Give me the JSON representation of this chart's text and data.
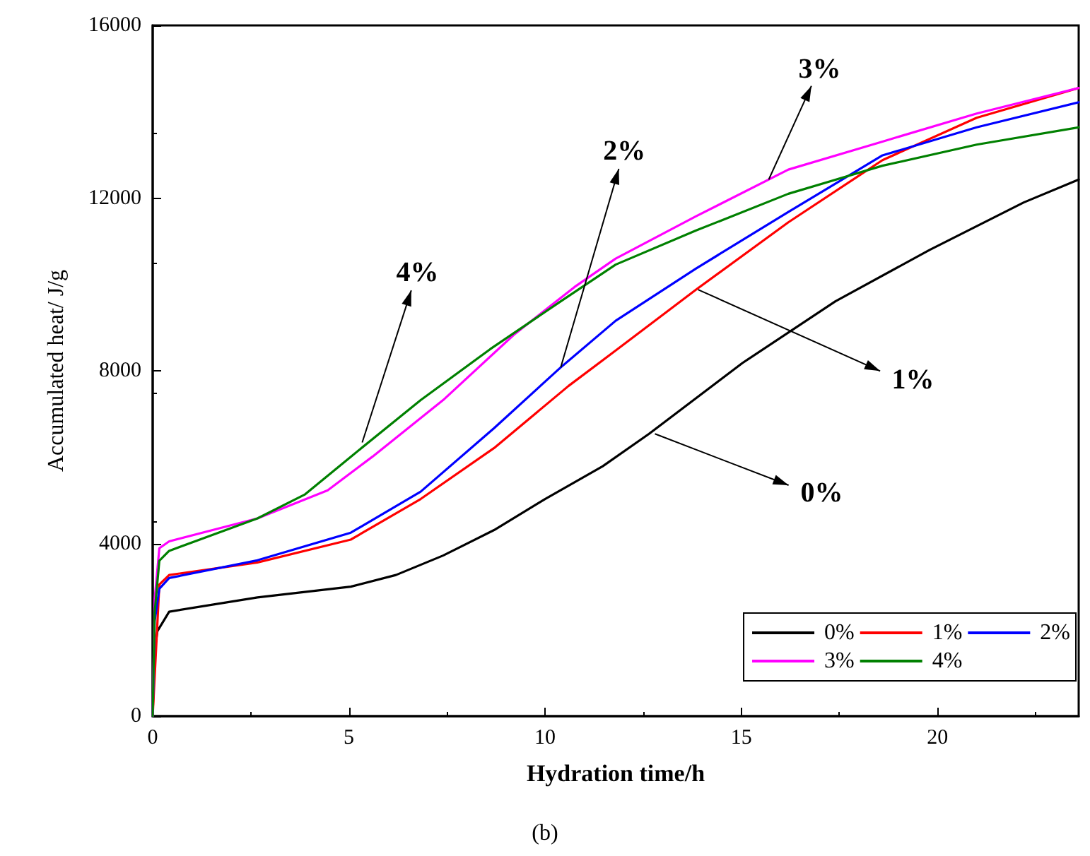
{
  "chart_data": {
    "type": "line",
    "xlabel": "Hydration time/h",
    "ylabel": "Accumulated heat/ J/g",
    "xlim": [
      0,
      23.6
    ],
    "xticks": [
      0,
      5,
      10,
      15,
      20
    ],
    "ylim": [
      0,
      16000
    ],
    "yticks": [
      0,
      4000,
      8000,
      12000,
      16000
    ],
    "grid": false,
    "legend": "bottom right",
    "marker": "none",
    "line_style": "solid",
    "series": [
      {
        "name": "0%",
        "color": "#000000",
        "x": [
          0,
          0.05,
          0.12,
          0.42,
          2.67,
          5.05,
          6.2,
          7.4,
          8.7,
          10,
          11.47,
          12.65,
          15.03,
          17.4,
          19.8,
          22.2,
          23.6
        ],
        "values": [
          0,
          1500,
          1970,
          2420,
          2750,
          3000,
          3270,
          3720,
          4310,
          5030,
          5790,
          6540,
          8180,
          9610,
          10800,
          11900,
          12430
        ]
      },
      {
        "name": "1%",
        "color": "#ff0000",
        "x": [
          0,
          0.17,
          0.42,
          2.67,
          5.05,
          6.83,
          8.7,
          10.6,
          11.8,
          13.85,
          16.2,
          18.6,
          21,
          23.6
        ],
        "values": [
          0,
          3050,
          3270,
          3560,
          4090,
          5030,
          6210,
          7650,
          8470,
          9880,
          11440,
          12880,
          13860,
          14550
        ]
      },
      {
        "name": "2%",
        "color": "#0000ff",
        "x": [
          0,
          0.05,
          0.17,
          0.42,
          2.67,
          5.05,
          6.83,
          8.7,
          10.4,
          11.8,
          13.85,
          16.2,
          18.6,
          21,
          23.6
        ],
        "values": [
          0,
          2200,
          2950,
          3200,
          3610,
          4250,
          5200,
          6670,
          8080,
          9160,
          10370,
          11680,
          12990,
          13640,
          14220
        ]
      },
      {
        "name": "3%",
        "color": "#ff00ff",
        "x": [
          0,
          0.05,
          0.17,
          0.42,
          2.67,
          4.46,
          5.6,
          7.4,
          9.2,
          10.75,
          11.8,
          13.85,
          16.2,
          18.6,
          21,
          23.6
        ],
        "values": [
          0,
          2700,
          3890,
          4050,
          4580,
          5230,
          6010,
          7320,
          8830,
          9940,
          10600,
          11580,
          12660,
          13310,
          13960,
          14550
        ]
      },
      {
        "name": "4%",
        "color": "#008000",
        "x": [
          0,
          0.05,
          0.17,
          0.42,
          2.67,
          3.87,
          5.05,
          6.83,
          8.6,
          10.4,
          11.8,
          13.85,
          16.2,
          18.6,
          21,
          23.6
        ],
        "values": [
          0,
          2400,
          3600,
          3830,
          4580,
          5130,
          6010,
          7320,
          8500,
          9610,
          10460,
          11250,
          12100,
          12750,
          13240,
          13640
        ]
      }
    ],
    "annotations": [
      {
        "text": "4%",
        "x": 5.34,
        "y": 6340
      },
      {
        "text": "2%",
        "x": 10.4,
        "y": 8080
      },
      {
        "text": "3%",
        "x": 15.7,
        "y": 12430
      },
      {
        "text": "1%",
        "x": 13.9,
        "y": 9880
      },
      {
        "text": "0%",
        "x": 12.8,
        "y": 6540
      },
      "(b)"
    ]
  }
}
